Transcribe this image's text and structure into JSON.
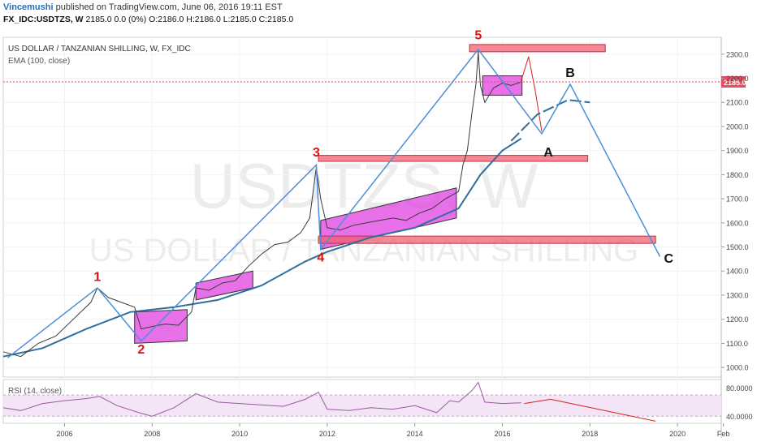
{
  "header": {
    "user": "Vincemushi",
    "published": "published on TradingView.com, June 06, 2016 19:11 EST",
    "symbol": "FX_IDC:USDTZS, W",
    "quote": "2185.0 0.0 (0%) O:2186.0 H:2186.0 L:2185.0 C:2185.0"
  },
  "chart_data": [
    {
      "type": "line",
      "title": "US DOLLAR / TANZANIAN SHILLING, W, FX_IDC",
      "indicator_label": "EMA (100, close)",
      "watermark_symbol": "USDTZS, W",
      "watermark_name": "US DOLLAR / TANZANIAN SHILLING",
      "last_price": "2185.0",
      "ylim": [
        960,
        2370
      ],
      "xlim": [
        2004.6,
        2021.0
      ],
      "y_ticks": [
        "1000.0",
        "1100.0",
        "1200.0",
        "1300.0",
        "1400.0",
        "1500.0",
        "1600.0",
        "1700.0",
        "1800.0",
        "1900.0",
        "2000.0",
        "2100.0",
        "2200.0",
        "2300.0"
      ],
      "x_ticks": [
        "2006",
        "2008",
        "2010",
        "2012",
        "2014",
        "2016",
        "2018",
        "2020",
        "Feb"
      ],
      "series": [
        {
          "kind": "price",
          "x": [
            2004.6,
            2005.0,
            2005.4,
            2005.8,
            2006.2,
            2006.6,
            2006.75,
            2007.0,
            2007.3,
            2007.6,
            2007.75,
            2008.0,
            2008.3,
            2008.6,
            2008.9,
            2009.0,
            2009.3,
            2009.6,
            2009.9,
            2010.2,
            2010.5,
            2010.8,
            2011.1,
            2011.4,
            2011.6,
            2011.75,
            2011.85,
            2012.0,
            2012.3,
            2012.6,
            2012.9,
            2013.2,
            2013.5,
            2013.8,
            2014.1,
            2014.4,
            2014.7,
            2015.0,
            2015.1,
            2015.2,
            2015.3,
            2015.4,
            2015.45,
            2015.5,
            2015.6,
            2015.8,
            2016.0,
            2016.2,
            2016.43
          ],
          "values": [
            1065,
            1045,
            1100,
            1130,
            1200,
            1270,
            1330,
            1290,
            1270,
            1250,
            1160,
            1170,
            1180,
            1175,
            1230,
            1330,
            1320,
            1350,
            1360,
            1420,
            1470,
            1510,
            1520,
            1560,
            1620,
            1830,
            1700,
            1580,
            1570,
            1590,
            1600,
            1610,
            1620,
            1610,
            1640,
            1660,
            1700,
            1730,
            1840,
            1900,
            2050,
            2180,
            2310,
            2170,
            2100,
            2160,
            2180,
            2170,
            2185
          ]
        },
        {
          "kind": "ema",
          "x": [
            2004.6,
            2005.5,
            2006.5,
            2007.5,
            2008.5,
            2009.5,
            2010.5,
            2011.5,
            2012.0,
            2013.0,
            2014.0,
            2015.0,
            2015.5,
            2016.0,
            2016.43
          ],
          "values": [
            1045,
            1080,
            1160,
            1230,
            1250,
            1280,
            1340,
            1440,
            1480,
            1540,
            1580,
            1660,
            1800,
            1900,
            1950
          ]
        }
      ],
      "wave_labels": [
        "1",
        "2",
        "3",
        "4",
        "5",
        "A",
        "B",
        "C"
      ],
      "wave_path": {
        "x": [
          2004.7,
          2006.75,
          2007.75,
          2011.75,
          2011.85,
          2015.45,
          2016.9,
          2017.55,
          2019.6
        ],
        "values": [
          1040,
          1330,
          1110,
          1840,
          1490,
          2320,
          1970,
          2175,
          1460
        ]
      },
      "projection": {
        "x": [
          2016.43,
          2016.6,
          2016.75,
          2016.9
        ],
        "values": [
          2190,
          2290,
          2150,
          1980
        ]
      },
      "ema_projection": {
        "x": [
          2016.2,
          2016.8,
          2017.5,
          2018.0
        ],
        "values": [
          1940,
          2050,
          2110,
          2100
        ]
      }
    },
    {
      "type": "line",
      "title": "RSI (14, close)",
      "ylim": [
        30,
        92
      ],
      "y_ticks": [
        "80.0000",
        "40.0000"
      ],
      "band": [
        40,
        70
      ],
      "series": [
        {
          "kind": "rsi",
          "x": [
            2004.6,
            2005.0,
            2005.5,
            2006.0,
            2006.5,
            2006.8,
            2007.2,
            2007.7,
            2008.0,
            2008.5,
            2009.0,
            2009.5,
            2010.0,
            2010.5,
            2011.0,
            2011.5,
            2011.8,
            2012.0,
            2012.5,
            2013.0,
            2013.5,
            2014.0,
            2014.5,
            2014.8,
            2015.0,
            2015.3,
            2015.45,
            2015.6,
            2016.0,
            2016.43
          ],
          "values": [
            52,
            48,
            58,
            62,
            65,
            68,
            55,
            45,
            40,
            52,
            72,
            60,
            58,
            56,
            54,
            64,
            74,
            50,
            48,
            52,
            50,
            55,
            45,
            62,
            60,
            76,
            88,
            60,
            58,
            59
          ]
        }
      ]
    }
  ],
  "colors": {
    "price": "#3a3a3a",
    "ema": "#2f6f9f",
    "wave": "#4a90d9",
    "zone_pink": "#e040e0",
    "zone_red": "#f06070",
    "label_red": "#e01010",
    "arrow": "#d62020",
    "rsi": "#9a5aa0",
    "rsi_band": "#f3e4f6",
    "last_price_box": "#e84a5f"
  }
}
